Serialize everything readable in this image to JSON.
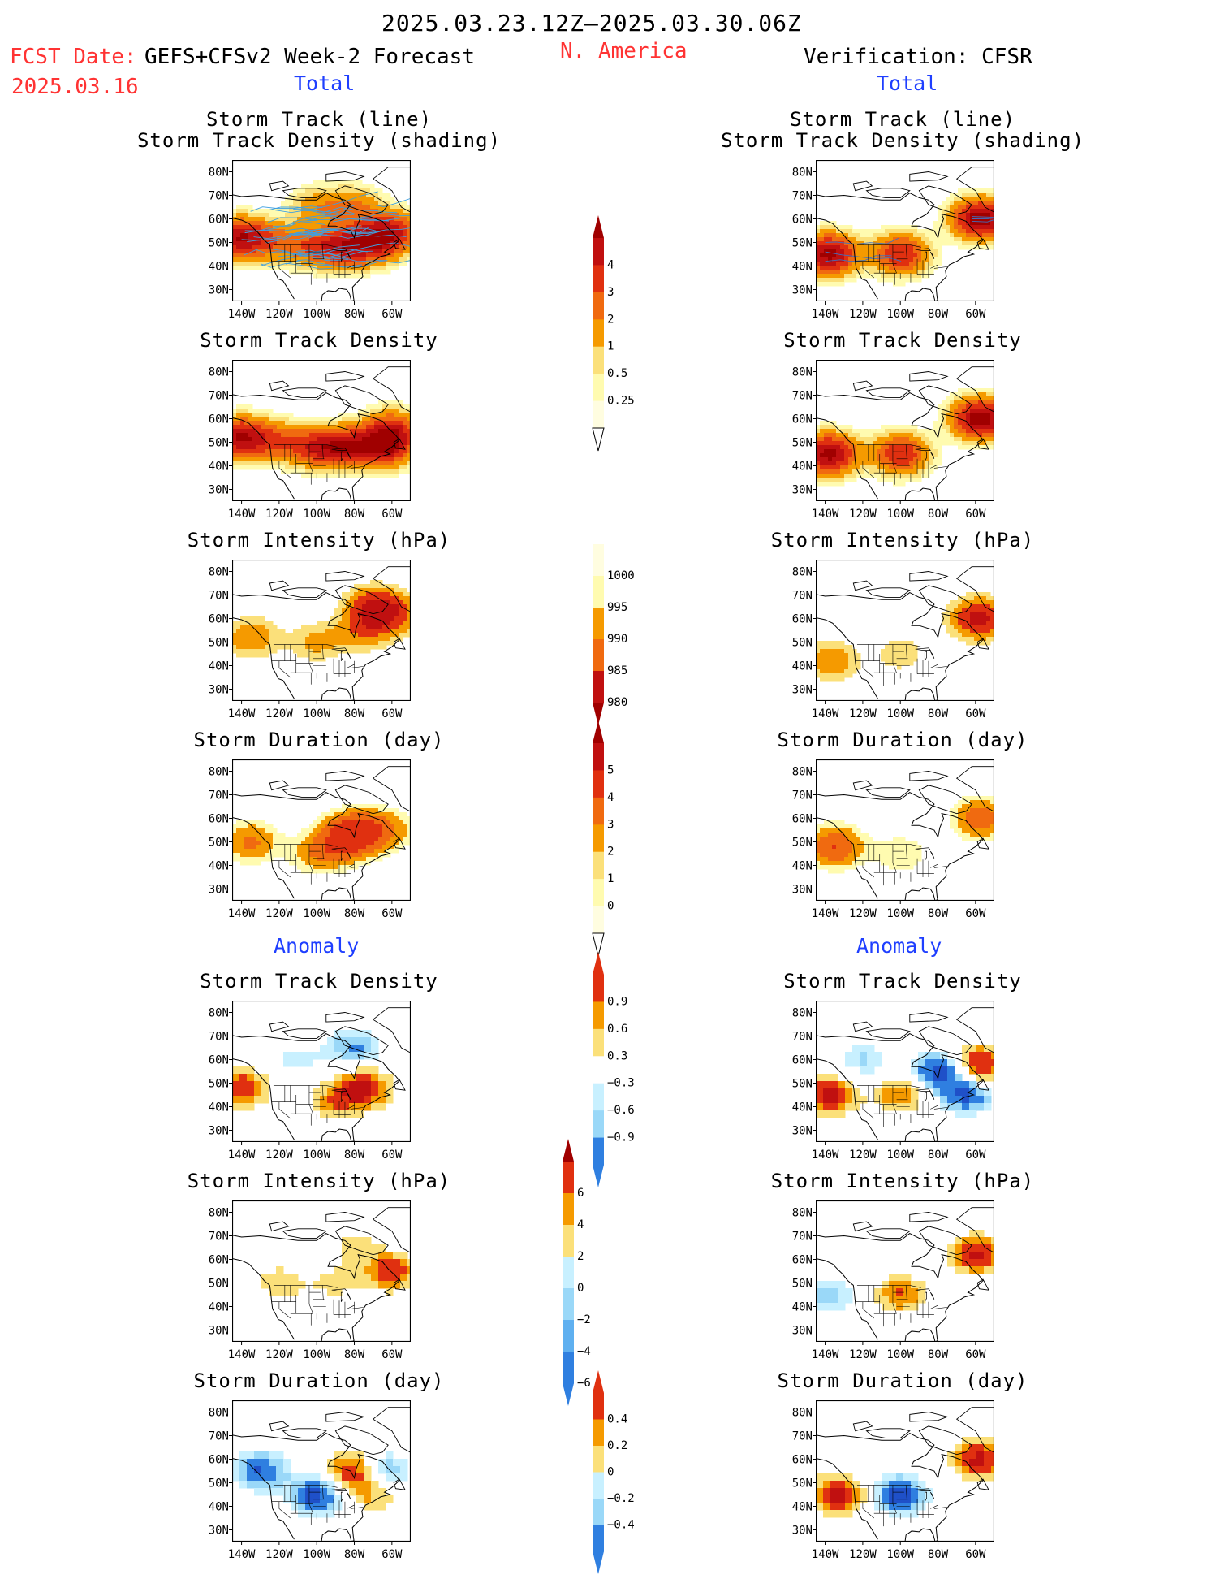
{
  "header": {
    "title": "2025.03.23.12Z–2025.03.30.06Z",
    "fcst_label": "FCST Date:",
    "fcst_model": "GEFS+CFSv2 Week-2 Forecast",
    "fcst_date": "2025.03.16",
    "region": "N. America",
    "verification": "Verification: CFSR",
    "left_total": "Total",
    "right_total": "Total",
    "left_anomaly": "Anomaly",
    "right_anomaly": "Anomaly"
  },
  "panel_titles": {
    "track_line_1": "Storm Track (line)",
    "track_line_2": "Storm Track Density (shading)",
    "density": "Storm Track Density",
    "intensity": "Storm Intensity (hPa)",
    "duration": "Storm Duration (day)"
  },
  "axes": {
    "y_ticks": [
      "80N",
      "70N",
      "60N",
      "50N",
      "40N",
      "30N"
    ],
    "x_ticks": [
      "140W",
      "120W",
      "100W",
      "80W",
      "60W"
    ]
  },
  "colors": {
    "warm": [
      "#fffbb0",
      "#fbe07a",
      "#f8b83a",
      "#f59a00",
      "#f06a10",
      "#e03010",
      "#c01010",
      "#a00000"
    ],
    "cool": [
      "#c8f0ff",
      "#9ad8f8",
      "#5fb0f0",
      "#2f7fe0",
      "#1f50c8"
    ],
    "track_line_fcst": "#3fa0e0",
    "track_line_obs": "#4070c0"
  },
  "chart_data": [
    {
      "type": "heatmap",
      "name": "Storm Track Density (shading) + Storm Track (line)",
      "source": "GEFS+CFSv2",
      "field": "total",
      "colorbar": [
        0.25,
        0.5,
        1,
        2,
        3,
        4
      ],
      "blobs": [
        [
          -140,
          52,
          3.2
        ],
        [
          -120,
          50,
          1.2
        ],
        [
          -100,
          48,
          1.5
        ],
        [
          -85,
          48,
          2
        ],
        [
          -70,
          50,
          2.5
        ],
        [
          -60,
          55,
          2.2
        ],
        [
          -100,
          65,
          1.0
        ],
        [
          -80,
          65,
          1.2
        ]
      ]
    },
    {
      "type": "heatmap",
      "name": "Storm Track Density (shading) + Storm Track (line)",
      "source": "CFSR",
      "field": "total",
      "colorbar": [
        0.25,
        0.5,
        1,
        2,
        3,
        4
      ],
      "blobs": [
        [
          -138,
          45,
          3.5
        ],
        [
          -100,
          45,
          2.5
        ],
        [
          -57,
          60,
          3.8
        ]
      ]
    },
    {
      "type": "heatmap",
      "name": "Storm Track Density",
      "source": "GEFS+CFSv2",
      "field": "total",
      "colorbar": [
        0.25,
        0.5,
        1,
        2,
        3,
        4
      ],
      "blobs": [
        [
          -140,
          52,
          3.2
        ],
        [
          -120,
          50,
          1.5
        ],
        [
          -100,
          48,
          2.0
        ],
        [
          -85,
          48,
          2.4
        ],
        [
          -65,
          48,
          3.0
        ],
        [
          -60,
          55,
          2.2
        ]
      ]
    },
    {
      "type": "heatmap",
      "name": "Storm Track Density",
      "source": "CFSR",
      "field": "total",
      "colorbar": [
        0.25,
        0.5,
        1,
        2,
        3,
        4
      ],
      "blobs": [
        [
          -138,
          45,
          3.5
        ],
        [
          -100,
          45,
          2.5
        ],
        [
          -57,
          60,
          3.8
        ]
      ]
    },
    {
      "type": "heatmap",
      "name": "Storm Intensity (hPa)",
      "source": "GEFS+CFSv2",
      "field": "total",
      "colorbar": [
        980,
        985,
        990,
        995,
        1000
      ],
      "blobs": [
        [
          -135,
          52,
          2
        ],
        [
          -100,
          50,
          1.5
        ],
        [
          -75,
          55,
          2
        ],
        [
          -60,
          62,
          2.5
        ],
        [
          -70,
          65,
          3
        ]
      ]
    },
    {
      "type": "heatmap",
      "name": "Storm Intensity (hPa)",
      "source": "CFSR",
      "field": "total",
      "colorbar": [
        980,
        985,
        990,
        995,
        1000
      ],
      "blobs": [
        [
          -137,
          42,
          2
        ],
        [
          -100,
          45,
          1
        ],
        [
          -58,
          60,
          4
        ]
      ]
    },
    {
      "type": "heatmap",
      "name": "Storm Duration (day)",
      "source": "GEFS+CFSv2",
      "field": "total",
      "colorbar": [
        0,
        1,
        2,
        3,
        4,
        5
      ],
      "blobs": [
        [
          -135,
          50,
          2
        ],
        [
          -100,
          45,
          1.5
        ],
        [
          -80,
          55,
          2.5
        ],
        [
          -65,
          55,
          2
        ],
        [
          -85,
          50,
          3
        ]
      ]
    },
    {
      "type": "heatmap",
      "name": "Storm Duration (day)",
      "source": "CFSR",
      "field": "total",
      "colorbar": [
        0,
        1,
        2,
        3,
        4,
        5
      ],
      "blobs": [
        [
          -135,
          48,
          3
        ],
        [
          -100,
          45,
          1
        ],
        [
          -57,
          60,
          2.5
        ]
      ]
    },
    {
      "type": "heatmap",
      "name": "Storm Track Density",
      "source": "GEFS+CFSv2",
      "field": "anomaly",
      "colorbar": [
        -0.9,
        -0.6,
        -0.3,
        0.3,
        0.6,
        0.9
      ],
      "blobs": [
        [
          -140,
          48,
          0.8
        ],
        [
          -75,
          48,
          0.9
        ],
        [
          -90,
          42,
          0.5
        ],
        [
          -80,
          65,
          -0.6
        ],
        [
          -110,
          60,
          -0.3
        ]
      ]
    },
    {
      "type": "heatmap",
      "name": "Storm Track Density",
      "source": "CFSR",
      "field": "anomaly",
      "colorbar": [
        -0.9,
        -0.6,
        -0.3,
        0.3,
        0.6,
        0.9
      ],
      "blobs": [
        [
          -138,
          45,
          0.9
        ],
        [
          -58,
          58,
          0.9
        ],
        [
          -80,
          55,
          -0.9
        ],
        [
          -100,
          45,
          0.6
        ],
        [
          -120,
          60,
          -0.4
        ],
        [
          -65,
          45,
          -0.8
        ]
      ]
    },
    {
      "type": "heatmap",
      "name": "Storm Intensity (hPa)",
      "source": "GEFS+CFSv2",
      "field": "anomaly",
      "colorbar": [
        -6,
        -4,
        -2,
        0,
        2,
        4,
        6
      ],
      "blobs": [
        [
          -120,
          50,
          2.5
        ],
        [
          -90,
          50,
          2
        ],
        [
          -60,
          55,
          5
        ],
        [
          -80,
          65,
          2
        ]
      ]
    },
    {
      "type": "heatmap",
      "name": "Storm Intensity (hPa)",
      "source": "CFSR",
      "field": "anomaly",
      "colorbar": [
        -6,
        -4,
        -2,
        0,
        2,
        4,
        6
      ],
      "blobs": [
        [
          -138,
          45,
          -3
        ],
        [
          -100,
          45,
          4
        ],
        [
          -60,
          62,
          6
        ]
      ]
    },
    {
      "type": "heatmap",
      "name": "Storm Duration (day)",
      "source": "GEFS+CFSv2",
      "field": "anomaly",
      "colorbar": [
        -0.4,
        -0.2,
        0,
        0.2,
        0.4
      ],
      "blobs": [
        [
          -130,
          55,
          -0.35
        ],
        [
          -100,
          45,
          -0.4
        ],
        [
          -80,
          55,
          0.4
        ],
        [
          -65,
          55,
          -0.3
        ],
        [
          -70,
          45,
          0.2
        ]
      ]
    },
    {
      "type": "heatmap",
      "name": "Storm Duration (day)",
      "source": "CFSR",
      "field": "anomaly",
      "colorbar": [
        -0.4,
        -0.2,
        0,
        0.2,
        0.4
      ],
      "blobs": [
        [
          -133,
          45,
          0.4
        ],
        [
          -100,
          45,
          -0.4
        ],
        [
          -58,
          60,
          0.4
        ]
      ]
    }
  ],
  "colorbars": [
    {
      "ticks": [
        "4",
        "3",
        "2",
        "1",
        "0.5",
        "0.25"
      ]
    },
    {
      "ticks": [
        "1000",
        "995",
        "990",
        "985",
        "980"
      ]
    },
    {
      "ticks": [
        "5",
        "4",
        "3",
        "2",
        "1",
        "0"
      ]
    },
    {
      "ticks": [
        "0.9",
        "0.6",
        "0.3",
        "−0.3",
        "−0.6",
        "−0.9"
      ]
    },
    {
      "ticks": [
        "6",
        "4",
        "2",
        "0",
        "−2",
        "−4",
        "−6"
      ]
    },
    {
      "ticks": [
        "0.4",
        "0.2",
        "0",
        "−0.2",
        "−0.4"
      ]
    }
  ]
}
